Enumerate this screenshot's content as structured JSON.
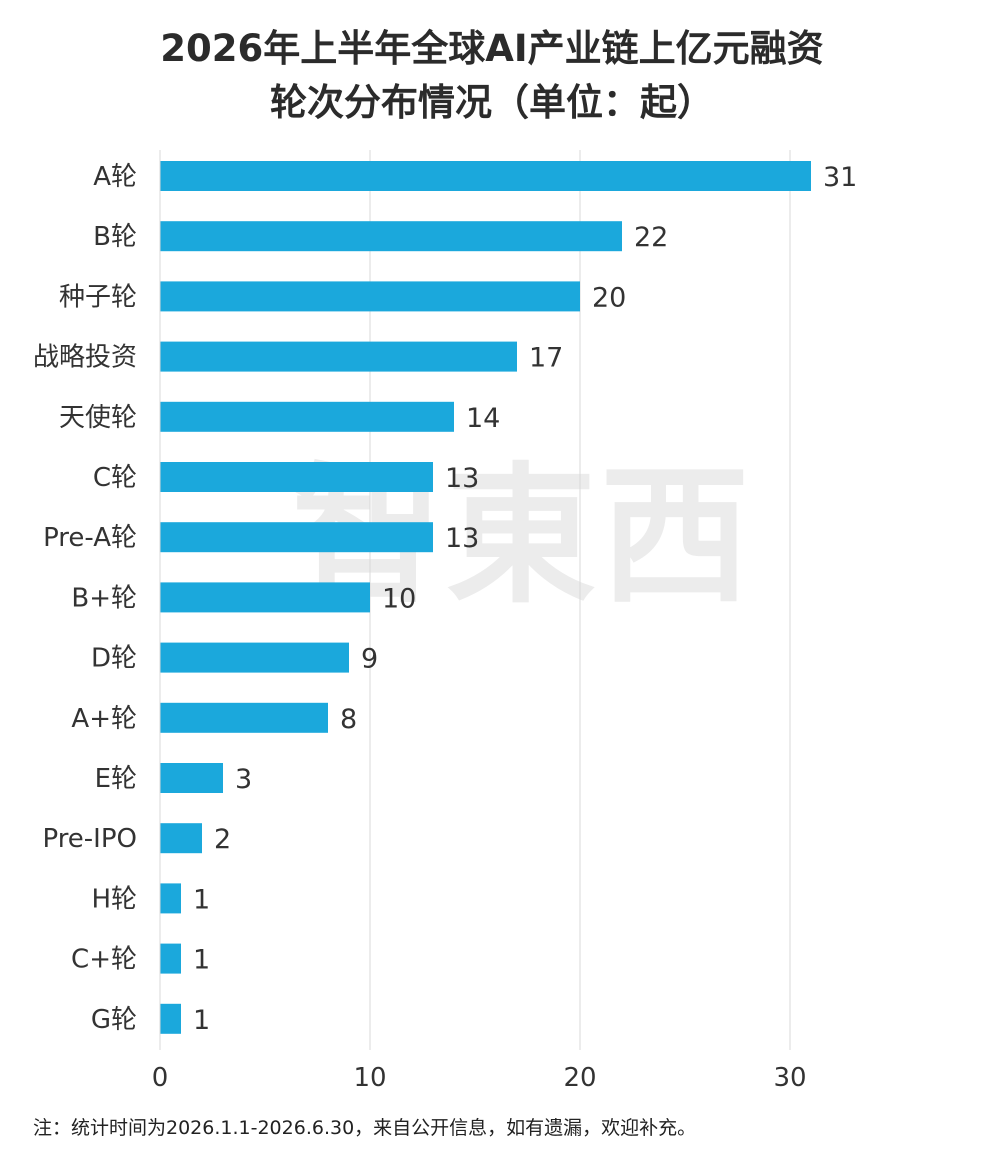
{
  "title_line1": "2026年上半年全球AI产业链上亿元融资",
  "title_line2": "轮次分布情况（单位：起）",
  "watermark": "智東西",
  "note": "注：统计时间为2026.1.1-2026.6.30，来自公开信息，如有遗漏，欢迎补充。",
  "colors": {
    "bar": "#1ba8dc",
    "grid": "#d9d9d9",
    "text": "#333333"
  },
  "chart_data": {
    "type": "bar",
    "orientation": "horizontal",
    "categories": [
      "A轮",
      "B轮",
      "种子轮",
      "战略投资",
      "天使轮",
      "C轮",
      "Pre-A轮",
      "B+轮",
      "D轮",
      "A+轮",
      "E轮",
      "Pre-IPO",
      "H轮",
      "C+轮",
      "G轮"
    ],
    "values": [
      31,
      22,
      20,
      17,
      14,
      13,
      13,
      10,
      9,
      8,
      3,
      2,
      1,
      1,
      1
    ],
    "xlim": [
      0,
      33
    ],
    "xticks": [
      0,
      10,
      20,
      30
    ],
    "grid": true,
    "data_labels": true
  }
}
